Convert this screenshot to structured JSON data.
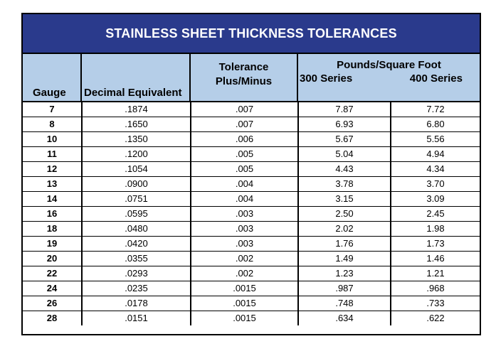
{
  "title": "STAINLESS SHEET THICKNESS TOLERANCES",
  "headers": {
    "gauge": "Gauge",
    "decimal": "Decimal Equivalent",
    "tolerance_line1": "Tolerance",
    "tolerance_line2": "Plus/Minus",
    "pounds": "Pounds/Square Foot",
    "series300": "300 Series",
    "series400": "400 Series"
  },
  "colors": {
    "title_bg": "#2a3a8c",
    "header_bg": "#b5cee8"
  },
  "rows": [
    [
      "7",
      ".1874",
      ".007",
      "7.87",
      "7.72"
    ],
    [
      "8",
      ".1650",
      ".007",
      "6.93",
      "6.80"
    ],
    [
      "10",
      ".1350",
      ".006",
      "5.67",
      "5.56"
    ],
    [
      "11",
      ".1200",
      ".005",
      "5.04",
      "4.94"
    ],
    [
      "12",
      ".1054",
      ".005",
      "4.43",
      "4.34"
    ],
    [
      "13",
      ".0900",
      ".004",
      "3.78",
      "3.70"
    ],
    [
      "14",
      ".0751",
      ".004",
      "3.15",
      "3.09"
    ],
    [
      "16",
      ".0595",
      ".003",
      "2.50",
      "2.45"
    ],
    [
      "18",
      ".0480",
      ".003",
      "2.02",
      "1.98"
    ],
    [
      "19",
      ".0420",
      ".003",
      "1.76",
      "1.73"
    ],
    [
      "20",
      ".0355",
      ".002",
      "1.49",
      "1.46"
    ],
    [
      "22",
      ".0293",
      ".002",
      "1.23",
      "1.21"
    ],
    [
      "24",
      ".0235",
      ".0015",
      ".987",
      ".968"
    ],
    [
      "26",
      ".0178",
      ".0015",
      ".748",
      ".733"
    ],
    [
      "28",
      ".0151",
      ".0015",
      ".634",
      ".622"
    ]
  ]
}
